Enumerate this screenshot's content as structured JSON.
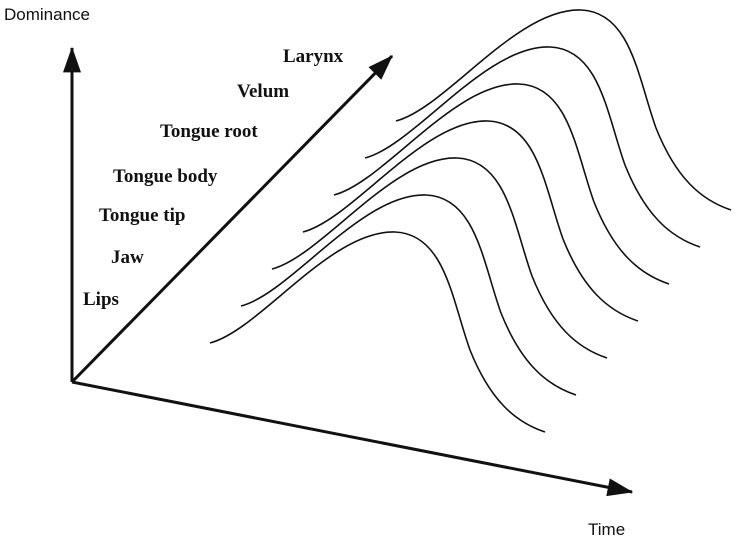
{
  "axes": {
    "vertical": "Dominance",
    "horizontal": "Time"
  },
  "articulators": [
    "Lips",
    "Jaw",
    "Tongue tip",
    "Tongue body",
    "Tongue root",
    "Velum",
    "Larynx"
  ]
}
